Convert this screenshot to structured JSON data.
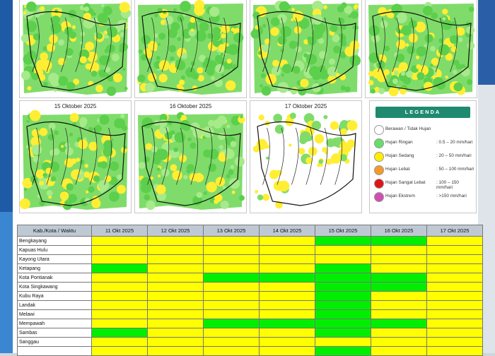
{
  "maps": [
    {
      "title": "",
      "dry": false
    },
    {
      "title": "",
      "dry": false
    },
    {
      "title": "",
      "dry": false
    },
    {
      "title": "",
      "dry": false
    },
    {
      "title": "15 Oktober 2025",
      "dry": false
    },
    {
      "title": "16 Oktober 2025",
      "dry": false
    },
    {
      "title": "17 Oktober 2025",
      "dry": true
    }
  ],
  "legend": {
    "title": "LEGENDA",
    "items": [
      {
        "label": "Berawan / Tidak Hujan",
        "range": "",
        "color": "#ffffff"
      },
      {
        "label": "Hujan Ringan",
        "range": ": 0.5 – 20 mm/hari",
        "color": "#66dd66"
      },
      {
        "label": "Hujan Sedang",
        "range": ": 20 – 50 mm/hari",
        "color": "#ffee00"
      },
      {
        "label": "Hujan Lebat",
        "range": ": 50 – 100 mm/hari",
        "color": "#f39a2b"
      },
      {
        "label": "Hujan Sangat Lebat",
        "range": ": 100 – 150 mm/hari",
        "color": "#e01515"
      },
      {
        "label": "Hujan Ekstrem",
        "range": ": >150 mm/hari",
        "color": "#d04fb0"
      }
    ]
  },
  "table": {
    "header": [
      "Kab./Kota / Waktu",
      "11 Okt 2025",
      "12 Okt 2025",
      "13 Okt 2025",
      "14 Okt 2025",
      "15 Okt 2025",
      "16 Okt 2025",
      "17 Okt 2025"
    ],
    "rows": [
      {
        "name": "Bengkayang",
        "cells": [
          "y",
          "y",
          "y",
          "y",
          "g",
          "g",
          "y"
        ]
      },
      {
        "name": "Kapuas Hulu",
        "cells": [
          "y",
          "y",
          "y",
          "y",
          "y",
          "y",
          "y"
        ]
      },
      {
        "name": "Kayong Utara",
        "cells": [
          "y",
          "y",
          "y",
          "y",
          "y",
          "y",
          "y"
        ]
      },
      {
        "name": "Ketapang",
        "cells": [
          "g",
          "y",
          "y",
          "y",
          "g",
          "y",
          "y"
        ]
      },
      {
        "name": "Kota Pontianak",
        "cells": [
          "y",
          "y",
          "g",
          "g",
          "g",
          "g",
          "y"
        ]
      },
      {
        "name": "Kota Singkawang",
        "cells": [
          "y",
          "y",
          "y",
          "y",
          "g",
          "g",
          "y"
        ]
      },
      {
        "name": "Kubu Raya",
        "cells": [
          "y",
          "y",
          "y",
          "y",
          "g",
          "y",
          "y"
        ]
      },
      {
        "name": "Landak",
        "cells": [
          "y",
          "y",
          "y",
          "y",
          "g",
          "y",
          "y"
        ]
      },
      {
        "name": "Melawi",
        "cells": [
          "y",
          "y",
          "y",
          "y",
          "g",
          "y",
          "y"
        ]
      },
      {
        "name": "Mempawah",
        "cells": [
          "y",
          "y",
          "g",
          "g",
          "g",
          "g",
          "y"
        ]
      },
      {
        "name": "Sambas",
        "cells": [
          "g",
          "y",
          "y",
          "y",
          "g",
          "y",
          "y"
        ]
      },
      {
        "name": "Sanggau",
        "cells": [
          "y",
          "y",
          "y",
          "y",
          "y",
          "y",
          "y"
        ]
      },
      {
        "name": "",
        "cells": [
          "y",
          "y",
          "y",
          "y",
          "g",
          "y",
          "y"
        ]
      }
    ]
  },
  "colors": {
    "yellow": "#ffff00",
    "green": "#00ee00",
    "header": "#bfc9d4"
  }
}
